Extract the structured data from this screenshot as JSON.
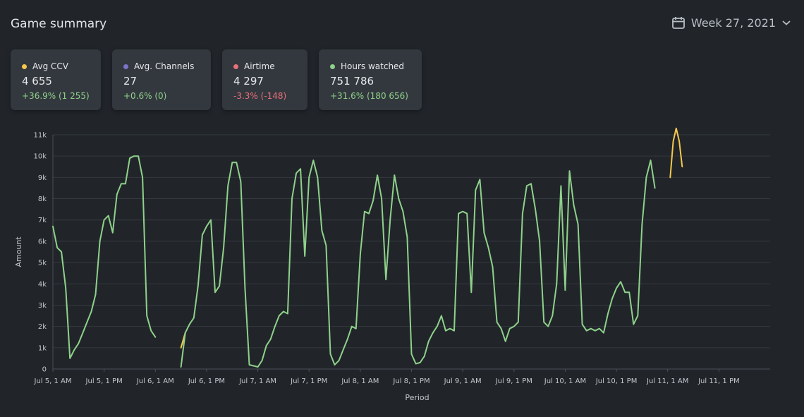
{
  "header": {
    "title": "Game summary",
    "week_label": "Week 27, 2021",
    "calendar_icon": "calendar-icon",
    "chevron_icon": "chevron-down-icon"
  },
  "cards": [
    {
      "label": "Avg CCV",
      "value": "4 655",
      "delta": "+36.9% (1 255)",
      "color": "#f5c84c",
      "positive": true
    },
    {
      "label": "Avg. Channels",
      "value": "27",
      "delta": "+0.6% (0)",
      "color": "#7b74c9",
      "positive": true
    },
    {
      "label": "Airtime",
      "value": "4 297",
      "delta": "-3.3% (-148)",
      "color": "#e8707a",
      "positive": false
    },
    {
      "label": "Hours watched",
      "value": "751 786",
      "delta": "+31.6% (180 656)",
      "color": "#8fd18a",
      "positive": true
    }
  ],
  "chart_data": {
    "type": "line",
    "xlabel": "Period",
    "ylabel": "Amount",
    "ylim": [
      0,
      11000
    ],
    "xlim": [
      0,
      168
    ],
    "grid": true,
    "y_ticks": [
      0,
      1000,
      2000,
      3000,
      4000,
      5000,
      6000,
      7000,
      8000,
      9000,
      10000,
      11000
    ],
    "y_tick_labels": [
      "0",
      "1k",
      "2k",
      "3k",
      "4k",
      "5k",
      "6k",
      "7k",
      "8k",
      "9k",
      "10k",
      "11k"
    ],
    "x_ticks": [
      0,
      12,
      24,
      36,
      48,
      60,
      72,
      84,
      96,
      108,
      120,
      132,
      144,
      156
    ],
    "x_tick_labels": [
      "Jul 5, 1 AM",
      "Jul 5, 1 PM",
      "Jul 6, 1 AM",
      "Jul 6, 1 PM",
      "Jul 7, 1 AM",
      "Jul 7, 1 PM",
      "Jul 8, 1 AM",
      "Jul 8, 1 PM",
      "Jul 9, 1 AM",
      "Jul 9, 1 PM",
      "Jul 10, 1 AM",
      "Jul 10, 1 PM",
      "Jul 11, 1 AM",
      "Jul 11, 1 PM"
    ],
    "series": [
      {
        "name": "Avg CCV",
        "color": "#f5c84c",
        "points": [
          [
            30,
            1000
          ],
          [
            31,
            1700
          ],
          [
            144.6,
            9000
          ],
          [
            145.3,
            10700
          ],
          [
            146,
            11300
          ],
          [
            146.7,
            10700
          ],
          [
            147.4,
            9500
          ]
        ]
      },
      {
        "name": "Hours watched",
        "color": "#8fd18a",
        "points": [
          [
            0,
            6700
          ],
          [
            1,
            5700
          ],
          [
            2,
            5500
          ],
          [
            3,
            3800
          ],
          [
            4,
            500
          ],
          [
            5,
            900
          ],
          [
            6,
            1200
          ],
          [
            7,
            1700
          ],
          [
            8,
            2200
          ],
          [
            9,
            2700
          ],
          [
            10,
            3500
          ],
          [
            11,
            6000
          ],
          [
            12,
            7000
          ],
          [
            13,
            7200
          ],
          [
            14,
            6400
          ],
          [
            15,
            8200
          ],
          [
            16,
            8700
          ],
          [
            17,
            8700
          ],
          [
            18,
            9900
          ],
          [
            19,
            10000
          ],
          [
            20,
            10000
          ],
          [
            21,
            9000
          ],
          [
            22,
            2500
          ],
          [
            23,
            1800
          ],
          [
            24,
            1500
          ],
          [
            30,
            100
          ],
          [
            31,
            1700
          ],
          [
            32,
            2100
          ],
          [
            33,
            2400
          ],
          [
            34,
            3900
          ],
          [
            35,
            6300
          ],
          [
            36,
            6700
          ],
          [
            37,
            7000
          ],
          [
            38,
            3600
          ],
          [
            39,
            3900
          ],
          [
            40,
            5700
          ],
          [
            41,
            8600
          ],
          [
            42,
            9700
          ],
          [
            43,
            9700
          ],
          [
            44,
            8800
          ],
          [
            45,
            3800
          ],
          [
            46,
            200
          ],
          [
            47,
            150
          ],
          [
            48,
            100
          ],
          [
            49,
            400
          ],
          [
            50,
            1100
          ],
          [
            51,
            1400
          ],
          [
            52,
            2000
          ],
          [
            53,
            2500
          ],
          [
            54,
            2700
          ],
          [
            55,
            2600
          ],
          [
            56,
            8000
          ],
          [
            57,
            9200
          ],
          [
            58,
            9400
          ],
          [
            59,
            5300
          ],
          [
            60,
            9000
          ],
          [
            61,
            9800
          ],
          [
            62,
            9000
          ],
          [
            63,
            6500
          ],
          [
            64,
            5800
          ],
          [
            65,
            700
          ],
          [
            66,
            200
          ],
          [
            67,
            400
          ],
          [
            68,
            900
          ],
          [
            69,
            1400
          ],
          [
            70,
            2000
          ],
          [
            71,
            1900
          ],
          [
            72,
            5400
          ],
          [
            73,
            7400
          ],
          [
            74,
            7300
          ],
          [
            75,
            7900
          ],
          [
            76,
            9100
          ],
          [
            77,
            8000
          ],
          [
            78,
            4200
          ],
          [
            79,
            7000
          ],
          [
            80,
            9100
          ],
          [
            81,
            8000
          ],
          [
            82,
            7400
          ],
          [
            83,
            6200
          ],
          [
            84,
            700
          ],
          [
            85,
            250
          ],
          [
            86,
            300
          ],
          [
            87,
            600
          ],
          [
            88,
            1300
          ],
          [
            89,
            1700
          ],
          [
            90,
            2000
          ],
          [
            91,
            2500
          ],
          [
            92,
            1800
          ],
          [
            93,
            1900
          ],
          [
            94,
            1800
          ],
          [
            95,
            7300
          ],
          [
            96,
            7400
          ],
          [
            97,
            7300
          ],
          [
            98,
            3600
          ],
          [
            99,
            8400
          ],
          [
            100,
            8900
          ],
          [
            101,
            6400
          ],
          [
            102,
            5700
          ],
          [
            103,
            4800
          ],
          [
            104,
            2200
          ],
          [
            105,
            1900
          ],
          [
            106,
            1300
          ],
          [
            107,
            1900
          ],
          [
            108,
            2000
          ],
          [
            109,
            2200
          ],
          [
            110,
            7300
          ],
          [
            111,
            8600
          ],
          [
            112,
            8700
          ],
          [
            113,
            7500
          ],
          [
            114,
            6000
          ],
          [
            115,
            2200
          ],
          [
            116,
            2000
          ],
          [
            117,
            2500
          ],
          [
            118,
            4000
          ],
          [
            119,
            8600
          ],
          [
            120,
            3700
          ],
          [
            121,
            9300
          ],
          [
            122,
            7700
          ],
          [
            123,
            6800
          ],
          [
            124,
            2100
          ],
          [
            125,
            1800
          ],
          [
            126,
            1900
          ],
          [
            127,
            1800
          ],
          [
            128,
            1900
          ],
          [
            129,
            1700
          ],
          [
            130,
            2600
          ],
          [
            131,
            3300
          ],
          [
            132,
            3800
          ],
          [
            133,
            4100
          ],
          [
            134,
            3600
          ],
          [
            135,
            3600
          ],
          [
            136,
            2100
          ],
          [
            137,
            2500
          ],
          [
            138,
            6800
          ],
          [
            139,
            9000
          ],
          [
            140,
            9800
          ],
          [
            141,
            8500
          ]
        ]
      },
      {
        "name": "Avg. Channels",
        "color": "#7b74c9",
        "points": [
          [
            0,
            30
          ],
          [
            6,
            20
          ],
          [
            12,
            30
          ],
          [
            18,
            40
          ],
          [
            24,
            25
          ],
          [
            30,
            25
          ],
          [
            36,
            30
          ],
          [
            42,
            30
          ],
          [
            48,
            25
          ],
          [
            54,
            30
          ],
          [
            60,
            30
          ],
          [
            66,
            25
          ],
          [
            72,
            30
          ],
          [
            78,
            30
          ],
          [
            84,
            25
          ],
          [
            90,
            30
          ],
          [
            96,
            30
          ],
          [
            102,
            25
          ],
          [
            108,
            30
          ],
          [
            114,
            30
          ],
          [
            120,
            30
          ],
          [
            126,
            25
          ],
          [
            132,
            30
          ],
          [
            138,
            30
          ],
          [
            144,
            30
          ],
          [
            150,
            25
          ],
          [
            156,
            30
          ],
          [
            162,
            30
          ],
          [
            168,
            30
          ]
        ]
      },
      {
        "name": "Airtime",
        "color": "#e8707a",
        "points": [
          [
            0,
            5
          ],
          [
            24,
            5
          ],
          [
            48,
            5
          ],
          [
            72,
            5
          ],
          [
            96,
            5
          ],
          [
            120,
            5
          ],
          [
            144,
            5
          ],
          [
            168,
            5
          ]
        ]
      }
    ]
  }
}
